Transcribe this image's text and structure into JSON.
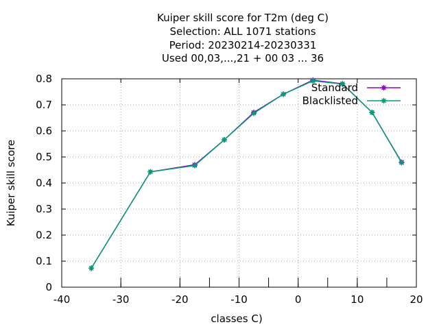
{
  "chart_data": {
    "type": "line",
    "title_lines": [
      "Kuiper skill score  for T2m (deg C)",
      "Selection: ALL   1071 stations",
      "Period: 20230214-20230331",
      "Used  00,03,...,21  + 00 03 ... 36"
    ],
    "xlabel": "classes C)",
    "ylabel": "Kuiper skill score",
    "xlim": [
      -40,
      20
    ],
    "ylim": [
      0,
      0.8
    ],
    "x_ticks": [
      -40,
      -30,
      -20,
      -10,
      0,
      10,
      20
    ],
    "y_ticks": [
      0,
      0.1,
      0.2,
      0.3,
      0.4,
      0.5,
      0.6,
      0.7,
      0.8
    ],
    "x_tick_labels": [
      "-40",
      "-30",
      "-20",
      "-10",
      "0",
      "10",
      "20"
    ],
    "y_tick_labels": [
      "0",
      "0.1",
      "0.2",
      "0.3",
      "0.4",
      "0.5",
      "0.6",
      "0.7",
      "0.8"
    ],
    "grid": true,
    "legend_position": "top-right",
    "x": [
      -35,
      -25,
      -17.5,
      -12.5,
      -7.5,
      -2.5,
      2.5,
      7.5,
      12.5,
      17.5
    ],
    "series": [
      {
        "name": "Standard",
        "color": "#9400d3",
        "values": [
          0.073,
          0.443,
          0.47,
          0.566,
          0.671,
          0.741,
          0.795,
          0.781,
          0.671,
          0.48
        ]
      },
      {
        "name": "Blacklisted",
        "color": "#009e73",
        "values": [
          0.073,
          0.443,
          0.467,
          0.566,
          0.668,
          0.741,
          0.792,
          0.78,
          0.671,
          0.478
        ]
      }
    ],
    "bottom_inner_ticks_x": [
      -30,
      -20,
      -15,
      -10,
      -5,
      0,
      5,
      10,
      15
    ]
  }
}
